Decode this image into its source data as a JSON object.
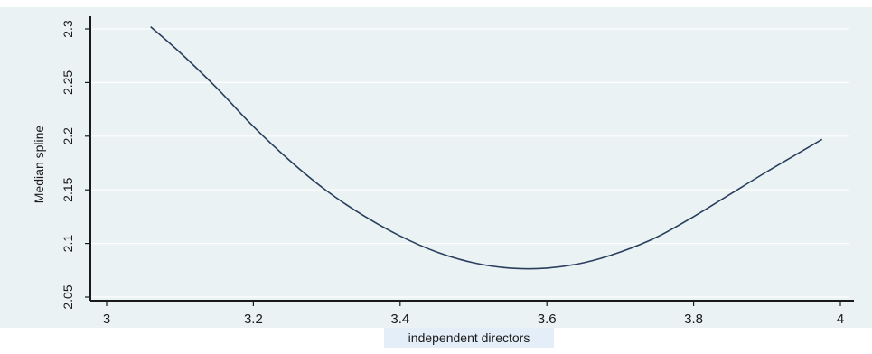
{
  "chart_data": {
    "type": "line",
    "title": "",
    "xlabel": "independent directors",
    "ylabel": "Median spline",
    "xlim": [
      3,
      4
    ],
    "ylim": [
      2.05,
      2.3
    ],
    "xticks": [
      "3",
      "3.2",
      "3.4",
      "3.6",
      "3.8",
      "4"
    ],
    "yticks": [
      "2.05",
      "2.1",
      "2.15",
      "2.2",
      "2.25",
      "2.3"
    ],
    "grid": true,
    "series": [
      {
        "color": "#2a3f5e",
        "points": [
          [
            3.06,
            2.302
          ],
          [
            3.1,
            2.278
          ],
          [
            3.15,
            2.245
          ],
          [
            3.2,
            2.209
          ],
          [
            3.25,
            2.177
          ],
          [
            3.3,
            2.149
          ],
          [
            3.35,
            2.126
          ],
          [
            3.4,
            2.107
          ],
          [
            3.45,
            2.092
          ],
          [
            3.5,
            2.082
          ],
          [
            3.55,
            2.077
          ],
          [
            3.6,
            2.077
          ],
          [
            3.65,
            2.082
          ],
          [
            3.7,
            2.092
          ],
          [
            3.75,
            2.106
          ],
          [
            3.8,
            2.125
          ],
          [
            3.85,
            2.146
          ],
          [
            3.9,
            2.167
          ],
          [
            3.95,
            2.187
          ],
          [
            3.975,
            2.197
          ]
        ]
      }
    ]
  },
  "colors": {
    "plot_background": "#eaf2f3",
    "line": "#2a3f5e",
    "xlabel_box": "#e4eef8"
  }
}
